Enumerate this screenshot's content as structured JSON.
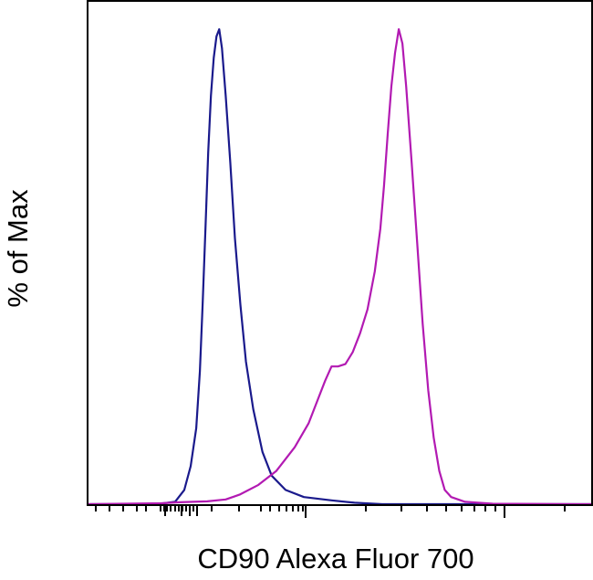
{
  "chart_data": {
    "type": "area",
    "xlabel": "CD90 Alexa Fluor 700",
    "ylabel": "% of Max",
    "xscale": "log (biexponential)",
    "ylim": [
      0,
      100
    ],
    "grid": false,
    "legend": "none",
    "x_tick_labels": [],
    "series": [
      {
        "color": "#1a1a8c",
        "x": [
          0,
          40,
          75,
          95,
          105,
          112,
          118,
          122,
          125,
          128,
          131,
          134,
          137,
          140,
          143,
          146,
          150,
          155,
          160,
          166,
          172,
          180,
          190,
          200,
          215,
          235,
          265,
          290,
          320,
          400,
          500,
          548
        ],
        "y": [
          0,
          0,
          0,
          0.5,
          3,
          8,
          16,
          28,
          42,
          58,
          74,
          86,
          94,
          98.5,
          100,
          96,
          86,
          72,
          56,
          42,
          30,
          20,
          11,
          6,
          3,
          1.5,
          0.8,
          0.3,
          0,
          0,
          0,
          0
        ]
      },
      {
        "color": "#b21ab2",
        "x": [
          0,
          80,
          100,
          130,
          150,
          165,
          185,
          205,
          225,
          240,
          250,
          258,
          265,
          272,
          280,
          288,
          296,
          304,
          312,
          318,
          322,
          326,
          330,
          334,
          338,
          342,
          346,
          352,
          358,
          364,
          370,
          376,
          382,
          388,
          395,
          410,
          440,
          548
        ],
        "y": [
          0,
          0.2,
          0.4,
          0.6,
          1,
          2,
          4,
          7,
          12,
          17,
          22,
          26,
          29,
          29,
          29.5,
          32,
          36,
          41,
          49,
          58,
          67,
          78,
          88,
          95,
          100,
          97,
          88,
          72,
          55,
          38,
          24,
          14,
          7,
          3,
          1.5,
          0.5,
          0.1,
          0
        ]
      }
    ]
  }
}
